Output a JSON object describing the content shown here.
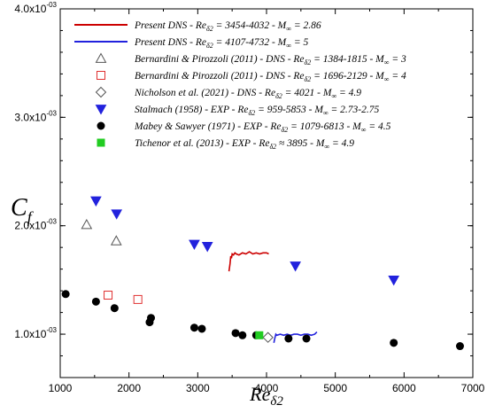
{
  "chart_data": {
    "type": "scatter",
    "title": "",
    "xlabel": {
      "main": "Re",
      "sub": "δ2"
    },
    "ylabel": {
      "main": "C",
      "sub": "f"
    },
    "xlim": [
      1000,
      7000
    ],
    "ylim": [
      0.0006,
      0.004
    ],
    "x_ticks": [
      {
        "value": 1000,
        "label": "1000"
      },
      {
        "value": 2000,
        "label": "2000"
      },
      {
        "value": 3000,
        "label": "3000"
      },
      {
        "value": 4000,
        "label": "4000"
      },
      {
        "value": 5000,
        "label": "5000"
      },
      {
        "value": 6000,
        "label": "6000"
      },
      {
        "value": 7000,
        "label": "7000"
      }
    ],
    "y_ticks": [
      {
        "value": 0.001,
        "mant": "1.0x10",
        "exp": "-03"
      },
      {
        "value": 0.002,
        "mant": "2.0x10",
        "exp": "-03"
      },
      {
        "value": 0.003,
        "mant": "3.0x10",
        "exp": "-03"
      },
      {
        "value": 0.004,
        "mant": "4.0x10",
        "exp": "-03"
      }
    ],
    "legend_position": "top-right",
    "grid": false,
    "series": [
      {
        "name": "Present DNS - Re",
        "name_sub": "δ2",
        "name_rest": " = 3454-4032 - M",
        "name_sub2": "∞",
        "name_end": " = 2.86",
        "marker": "line",
        "color": "#cc0000",
        "x": [
          3454,
          3470,
          3480,
          3490,
          3500,
          3520,
          3540,
          3560,
          3600,
          3650,
          3700,
          3750,
          3800,
          3850,
          3900,
          3950,
          4000,
          4032
        ],
        "y": [
          0.00158,
          0.00165,
          0.00172,
          0.0017,
          0.00174,
          0.00173,
          0.00175,
          0.00174,
          0.00173,
          0.00175,
          0.00174,
          0.00176,
          0.00174,
          0.00175,
          0.00174,
          0.00175,
          0.00175,
          0.00174
        ]
      },
      {
        "name": "Present DNS - Re",
        "name_sub": "δ2",
        "name_rest": " = 4107-4732 - M",
        "name_sub2": "∞",
        "name_end": " = 5",
        "marker": "line",
        "color": "#2222dd",
        "x": [
          4107,
          4120,
          4135,
          4150,
          4200,
          4250,
          4300,
          4350,
          4400,
          4450,
          4500,
          4550,
          4600,
          4650,
          4700,
          4732
        ],
        "y": [
          0.00092,
          0.00096,
          0.001,
          0.00099,
          0.001,
          0.00099,
          0.001,
          0.00099,
          0.001,
          0.001,
          0.00099,
          0.001,
          0.001,
          0.00099,
          0.001,
          0.00102
        ]
      },
      {
        "name": "Bernardini & Pirozzoli (2011) - DNS - Re",
        "name_sub": "δ2",
        "name_rest": " = 1384-1815 - M",
        "name_sub2": "∞",
        "name_end": " = 3",
        "marker": "triangle-open",
        "color": "#555555",
        "x": [
          1384,
          1815
        ],
        "y": [
          0.00201,
          0.00186
        ]
      },
      {
        "name": "Bernardini & Pirozzoli  (2011) - DNS - Re",
        "name_sub": "δ2",
        "name_rest": " = 1696-2129 - M",
        "name_sub2": "∞",
        "name_end": " = 4",
        "marker": "square-open",
        "color": "#e03030",
        "x": [
          1696,
          2129
        ],
        "y": [
          0.00136,
          0.00132
        ]
      },
      {
        "name": "Nicholson et al. (2021) - DNS - Re",
        "name_sub": "δ2",
        "name_rest": " = 4021 - M",
        "name_sub2": "∞",
        "name_end": " = 4.9",
        "marker": "diamond-open",
        "color": "#555555",
        "x": [
          4021
        ],
        "y": [
          0.00097
        ]
      },
      {
        "name": "Stalmach (1958) - EXP - Re",
        "name_sub": "δ2",
        "name_rest": " = 959-5853 - M",
        "name_sub2": "∞",
        "name_end": " = 2.73-2.75",
        "marker": "triangle-down-filled",
        "color": "#2222dd",
        "x": [
          1520,
          1820,
          2950,
          3140,
          4420,
          5850
        ],
        "y": [
          0.00223,
          0.00211,
          0.00183,
          0.00181,
          0.00163,
          0.0015
        ]
      },
      {
        "name": "Mabey & Sawyer (1971) - EXP - Re",
        "name_sub": "δ2",
        "name_rest": " = 1079-6813 - M",
        "name_sub2": "∞",
        "name_end": " = 4.5",
        "marker": "circle-filled",
        "color": "#000000",
        "x": [
          1079,
          1520,
          1790,
          2300,
          2320,
          2950,
          3060,
          3550,
          3650,
          3850,
          4320,
          4580,
          5850,
          6813
        ],
        "y": [
          0.00137,
          0.0013,
          0.00124,
          0.00111,
          0.00115,
          0.00106,
          0.00105,
          0.00101,
          0.00099,
          0.00099,
          0.00096,
          0.00096,
          0.00092,
          0.00089
        ]
      },
      {
        "name": "Tichenor et al. (2013) - EXP - Re",
        "name_sub": "δ2",
        "name_rest": " ≈ 3895 - M",
        "name_sub2": "∞",
        "name_end": " = 4.9",
        "marker": "square-filled",
        "color": "#22cc22",
        "x": [
          3895
        ],
        "y": [
          0.00099
        ]
      }
    ]
  }
}
